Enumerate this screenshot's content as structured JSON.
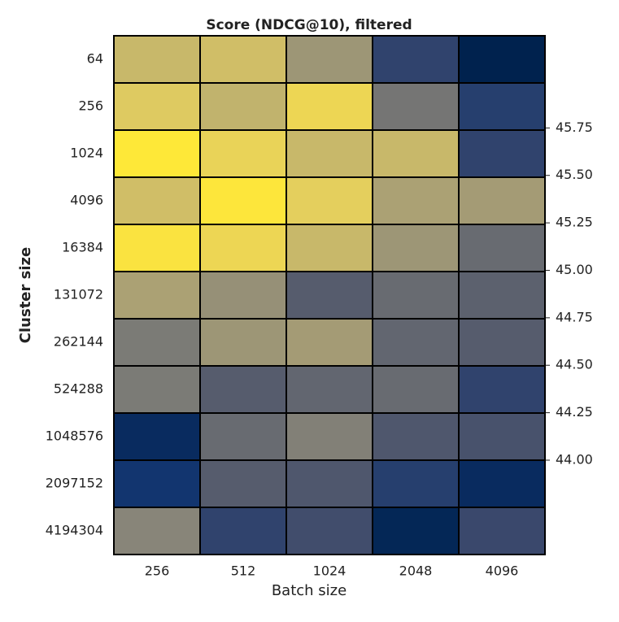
{
  "chart_data": {
    "type": "heatmap",
    "title": "Score (NDCG@10), filtered",
    "x_label": "Batch size",
    "y_label": "Cluster size",
    "x_categories": [
      "256",
      "512",
      "1024",
      "2048",
      "4096"
    ],
    "y_categories": [
      "64",
      "256",
      "1024",
      "4096",
      "16384",
      "131072",
      "262144",
      "524288",
      "1048576",
      "2097152",
      "4194304"
    ],
    "values": [
      [
        45.3,
        45.35,
        45.0,
        44.2,
        43.85
      ],
      [
        45.45,
        45.25,
        45.6,
        44.7,
        44.15
      ],
      [
        45.88,
        45.55,
        45.3,
        45.3,
        44.2
      ],
      [
        45.35,
        45.85,
        45.5,
        45.1,
        45.05
      ],
      [
        45.8,
        45.6,
        45.3,
        45.0,
        44.6
      ],
      [
        45.1,
        44.95,
        44.45,
        44.6,
        44.5
      ],
      [
        44.75,
        45.0,
        45.05,
        44.55,
        44.45
      ],
      [
        44.75,
        44.45,
        44.55,
        44.6,
        44.2
      ],
      [
        43.95,
        44.6,
        44.8,
        44.4,
        44.35
      ],
      [
        44.05,
        44.45,
        44.4,
        44.15,
        43.95
      ],
      [
        44.85,
        44.2,
        44.3,
        43.9,
        44.25
      ]
    ],
    "colormap": "cividis",
    "clim": [
      43.85,
      45.88
    ],
    "cticks": [
      {
        "value": 44.0,
        "label": "44.00"
      },
      {
        "value": 44.25,
        "label": "44.25"
      },
      {
        "value": 44.5,
        "label": "44.50"
      },
      {
        "value": 44.75,
        "label": "44.75"
      },
      {
        "value": 45.0,
        "label": "45.00"
      },
      {
        "value": 45.25,
        "label": "45.25"
      },
      {
        "value": 45.5,
        "label": "45.50"
      },
      {
        "value": 45.75,
        "label": "45.75"
      }
    ]
  }
}
